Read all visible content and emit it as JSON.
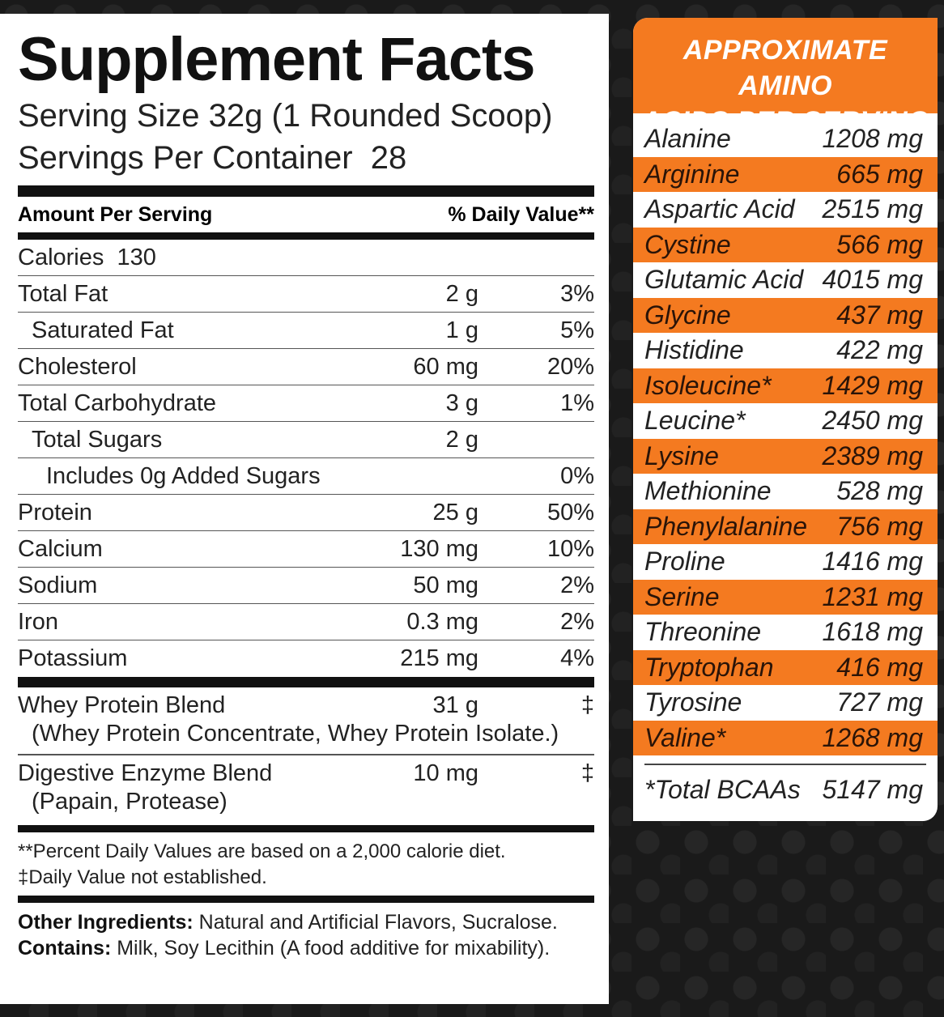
{
  "facts": {
    "title": "Supplement Facts",
    "serving_size": "Serving Size 32g (1 Rounded Scoop)",
    "servings_per_container": "Servings Per Container  28",
    "header_amount": "Amount Per Serving",
    "header_dv": "% Daily Value**",
    "calories": "Calories  130",
    "rows": [
      {
        "name": "Total Fat",
        "amount": "2 g",
        "dv": "3%"
      },
      {
        "name": "Saturated Fat",
        "amount": "1 g",
        "dv": "5%"
      },
      {
        "name": "Cholesterol",
        "amount": "60 mg",
        "dv": "20%"
      },
      {
        "name": "Total Carbohydrate",
        "amount": "3 g",
        "dv": "1%"
      },
      {
        "name": "Total Sugars",
        "amount": "2 g",
        "dv": ""
      },
      {
        "name": "Includes 0g Added Sugars",
        "amount": "",
        "dv": "0%"
      },
      {
        "name": "Protein",
        "amount": "25 g",
        "dv": "50%"
      },
      {
        "name": "Calcium",
        "amount": "130 mg",
        "dv": "10%"
      },
      {
        "name": "Sodium",
        "amount": "50 mg",
        "dv": "2%"
      },
      {
        "name": "Iron",
        "amount": "0.3 mg",
        "dv": "2%"
      },
      {
        "name": "Potassium",
        "amount": "215 mg",
        "dv": "4%"
      }
    ],
    "blends": [
      {
        "name": "Whey Protein Blend",
        "amount": "31 g",
        "dv": "‡",
        "sub": "(Whey Protein Concentrate, Whey Protein Isolate.)"
      },
      {
        "name": "Digestive Enzyme Blend",
        "amount": "10 mg",
        "dv": "‡",
        "sub": "(Papain, Protease)"
      }
    ],
    "footnote1": "**Percent Daily Values are based on a 2,000 calorie diet.",
    "footnote2": "‡Daily Value not established.",
    "other_label": "Other Ingredients:",
    "other_text": " Natural and Artificial Flavors, Sucralose.",
    "contains_label": "Contains:",
    "contains_text": " Milk, Soy Lecithin (A food additive for mixability)."
  },
  "amino": {
    "title_line1": "APPROXIMATE AMINO",
    "title_line2": "ACIDS PER SERVING",
    "accent_color": "#f47a20",
    "rows": [
      {
        "name": "Alanine",
        "amount": "1208 mg"
      },
      {
        "name": "Arginine",
        "amount": "665 mg"
      },
      {
        "name": "Aspartic Acid",
        "amount": "2515 mg"
      },
      {
        "name": "Cystine",
        "amount": "566 mg"
      },
      {
        "name": "Glutamic Acid",
        "amount": "4015 mg"
      },
      {
        "name": "Glycine",
        "amount": "437 mg"
      },
      {
        "name": "Histidine",
        "amount": "422 mg"
      },
      {
        "name": "Isoleucine*",
        "amount": "1429 mg"
      },
      {
        "name": "Leucine*",
        "amount": "2450 mg"
      },
      {
        "name": "Lysine",
        "amount": "2389 mg"
      },
      {
        "name": "Methionine",
        "amount": "528 mg"
      },
      {
        "name": "Phenylalanine",
        "amount": "756 mg"
      },
      {
        "name": "Proline",
        "amount": "1416 mg"
      },
      {
        "name": "Serine",
        "amount": "1231 mg"
      },
      {
        "name": "Threonine",
        "amount": "1618 mg"
      },
      {
        "name": "Tryptophan",
        "amount": "416 mg"
      },
      {
        "name": "Tyrosine",
        "amount": "727 mg"
      },
      {
        "name": "Valine*",
        "amount": "1268 mg"
      }
    ],
    "total_label": "*Total BCAAs",
    "total_amount": "5147 mg"
  }
}
